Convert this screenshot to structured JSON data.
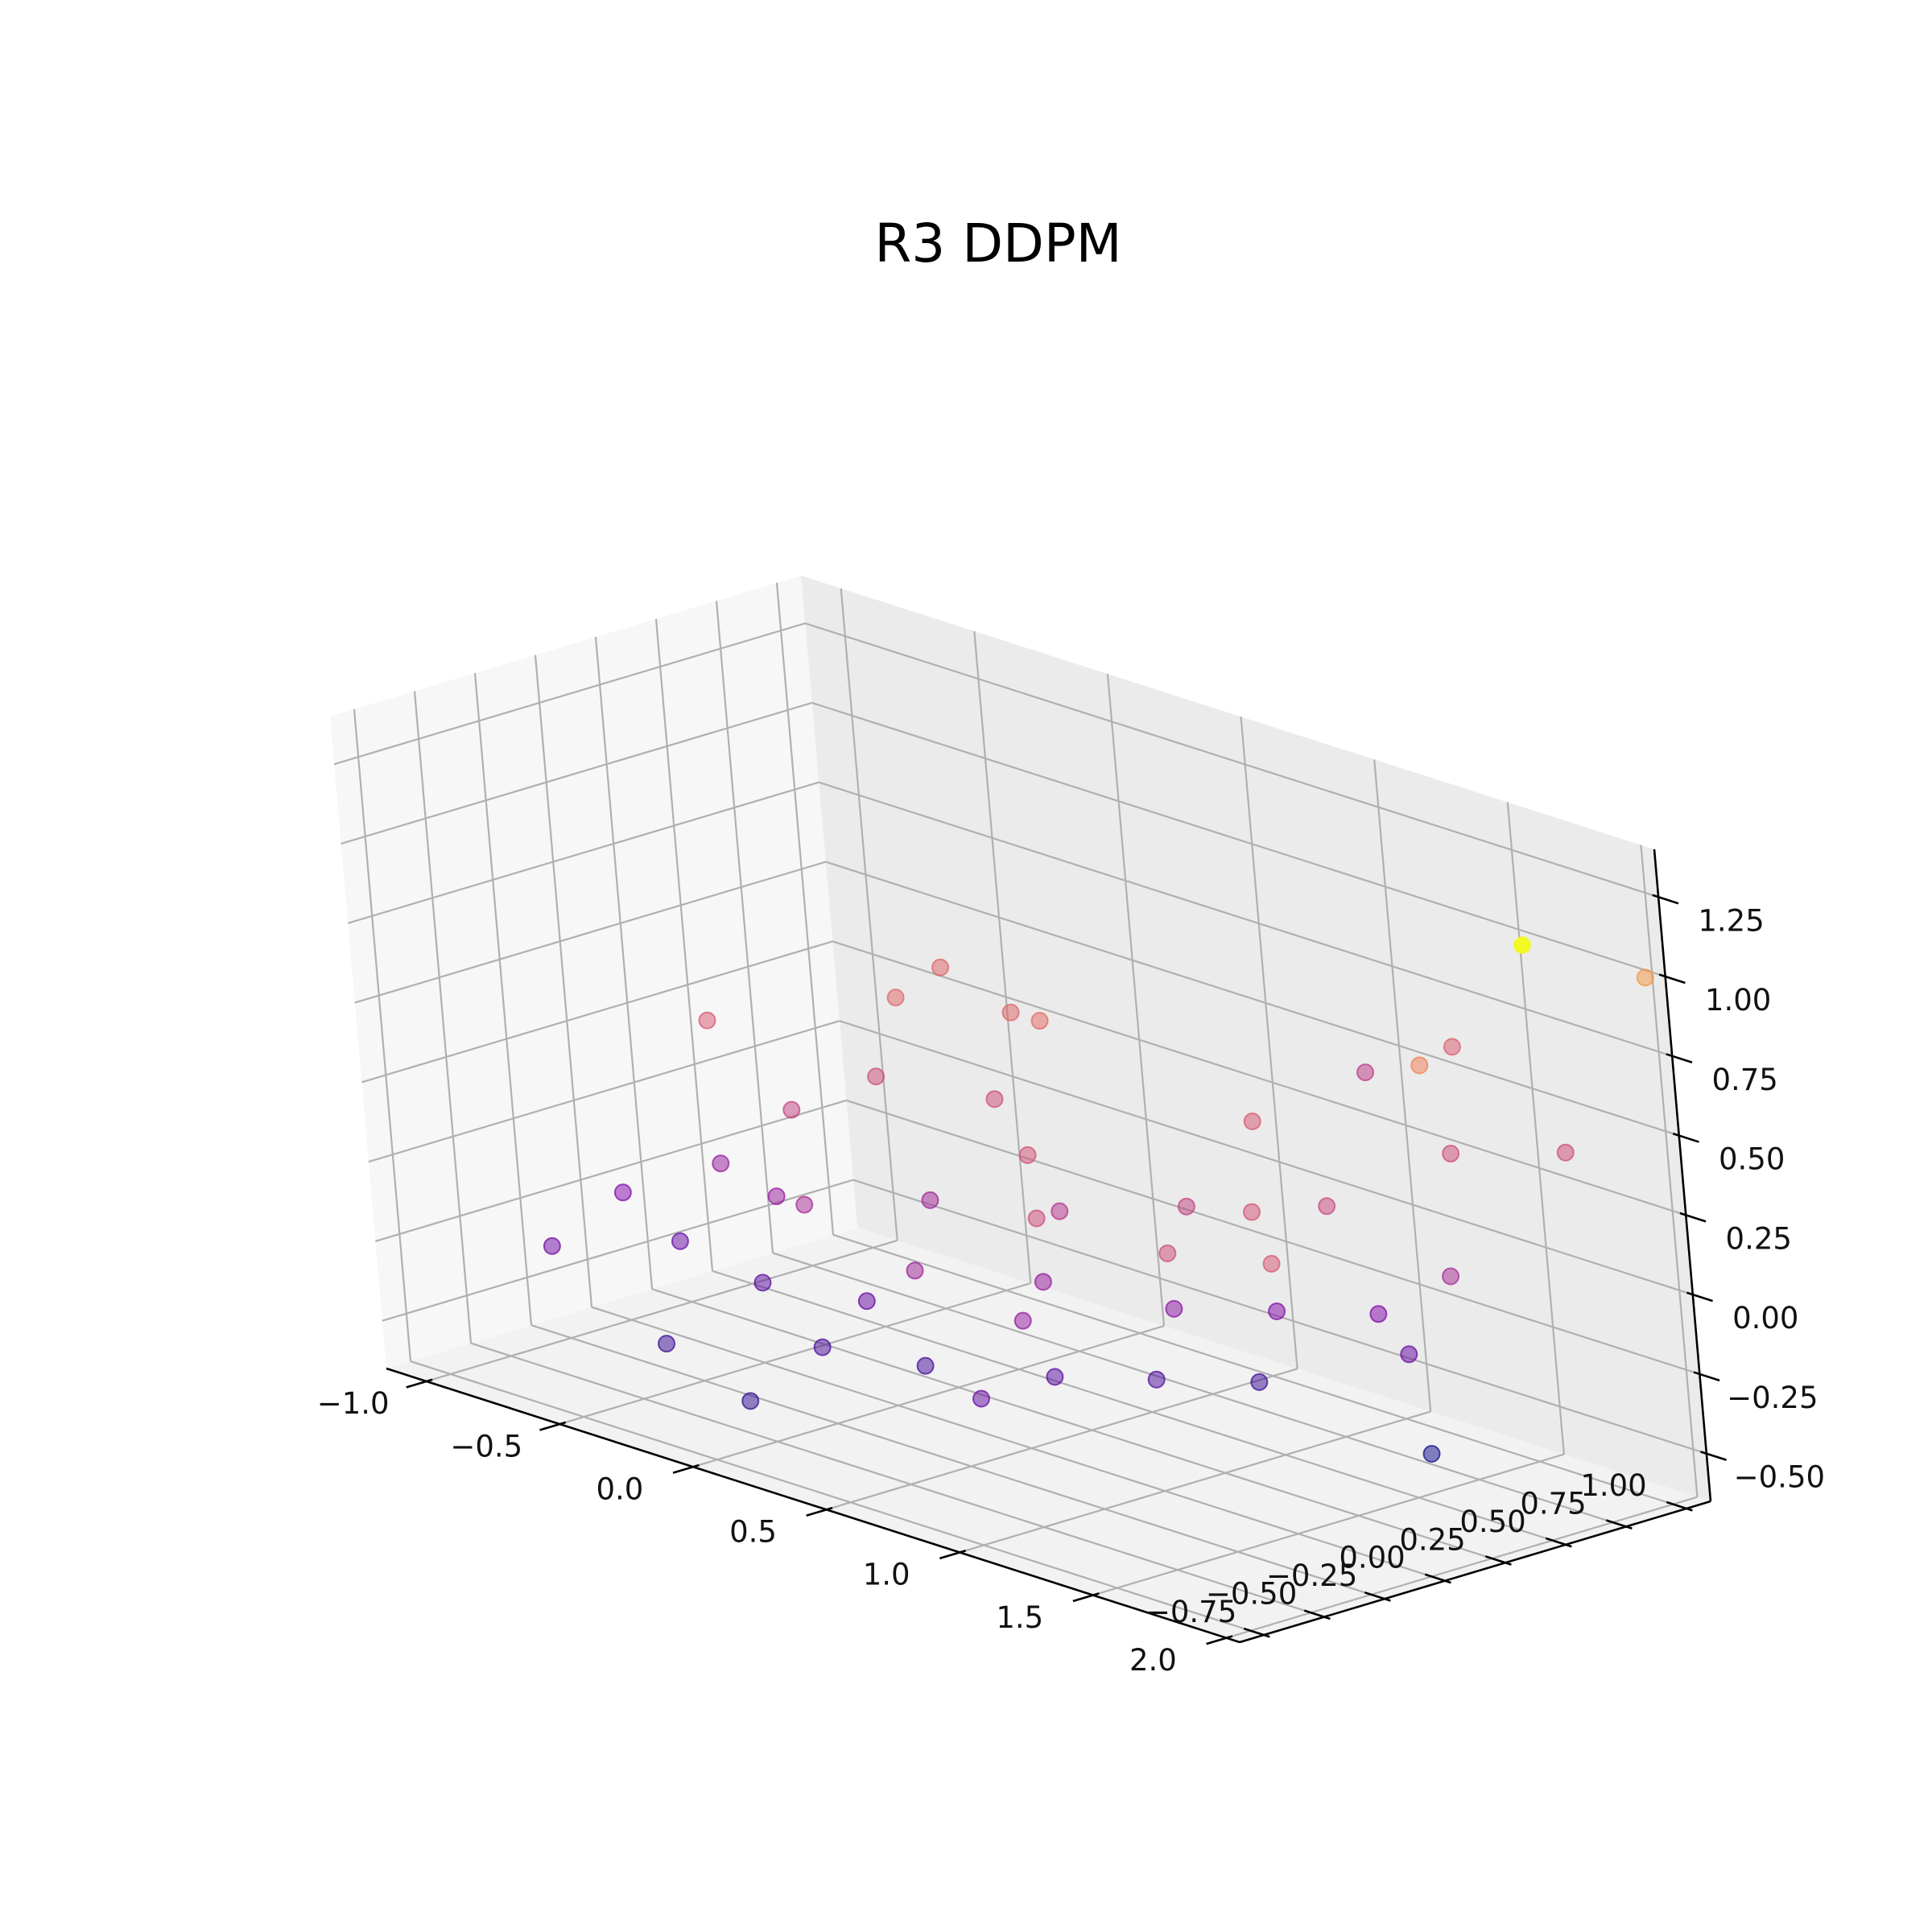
{
  "chart_data": {
    "type": "scatter",
    "projection": "3d",
    "title": "R3 DDPM",
    "xlabel": "",
    "ylabel": "",
    "zlabel": "",
    "xlim": [
      -1.15,
      2.05
    ],
    "ylim": [
      -0.85,
      1.1
    ],
    "zlim": [
      -0.65,
      1.4
    ],
    "x_ticks": [
      "−1.0",
      "−0.5",
      "0.0",
      "0.5",
      "1.0",
      "1.5",
      "2.0"
    ],
    "y_ticks": [
      "−0.75",
      "−0.50",
      "−0.25",
      "0.00",
      "0.25",
      "0.50",
      "0.75",
      "1.00"
    ],
    "z_ticks": [
      "−0.50",
      "−0.25",
      "0.00",
      "0.25",
      "0.50",
      "0.75",
      "1.00",
      "1.25"
    ],
    "grid": true,
    "colormap": "plasma",
    "color_by": "z",
    "panes": [
      "#f2f2f2",
      "#f7f7f7",
      "#ebebeb"
    ],
    "marker_alpha": 0.5,
    "points": [
      {
        "x": -0.6,
        "y": 0.95,
        "z": 0.35,
        "c": 0.55
      },
      {
        "x": 0.1,
        "y": 0.6,
        "z": 0.45,
        "c": 0.58
      },
      {
        "x": -0.4,
        "y": 0.55,
        "z": 0.4,
        "c": 0.56
      },
      {
        "x": -0.8,
        "y": 0.2,
        "z": 0.3,
        "c": 0.5
      },
      {
        "x": -0.2,
        "y": 0.8,
        "z": 0.35,
        "c": 0.55
      },
      {
        "x": 1.7,
        "y": 0.9,
        "z": 1.05,
        "c": 1.0
      },
      {
        "x": 2.02,
        "y": 1.05,
        "z": 1.0,
        "c": 0.72
      },
      {
        "x": 1.55,
        "y": 0.6,
        "z": 0.7,
        "c": 0.66
      },
      {
        "x": 1.3,
        "y": 1.0,
        "z": 0.6,
        "c": 0.52
      },
      {
        "x": 1.1,
        "y": 0.85,
        "z": 0.5,
        "c": 0.4
      },
      {
        "x": 1.45,
        "y": 0.8,
        "z": 0.35,
        "c": 0.45
      },
      {
        "x": 1.75,
        "y": 0.95,
        "z": 0.4,
        "c": 0.45
      },
      {
        "x": 0.6,
        "y": 0.9,
        "z": 0.2,
        "c": 0.5
      },
      {
        "x": 0.95,
        "y": 0.5,
        "z": 0.1,
        "c": 0.48
      },
      {
        "x": 0.85,
        "y": 0.25,
        "z": 0.0,
        "c": 0.45
      },
      {
        "x": 1.2,
        "y": 0.3,
        "z": 0.05,
        "c": 0.5
      },
      {
        "x": 0.5,
        "y": 0.1,
        "z": 0.05,
        "c": 0.45
      },
      {
        "x": 0.2,
        "y": 0.4,
        "z": 0.1,
        "c": 0.48
      },
      {
        "x": -0.6,
        "y": 0.3,
        "z": 0.05,
        "c": 0.42
      },
      {
        "x": -0.2,
        "y": -0.1,
        "z": -0.05,
        "c": 0.35
      },
      {
        "x": 0.3,
        "y": -0.2,
        "z": -0.1,
        "c": 0.32
      },
      {
        "x": 0.7,
        "y": -0.2,
        "z": -0.15,
        "c": 0.3
      },
      {
        "x": 1.0,
        "y": 0.1,
        "z": -0.1,
        "c": 0.28
      },
      {
        "x": 1.3,
        "y": 0.2,
        "z": -0.05,
        "c": 0.26
      },
      {
        "x": 1.5,
        "y": 0.4,
        "z": -0.05,
        "c": 0.25
      },
      {
        "x": 0.8,
        "y": -0.5,
        "z": -0.3,
        "c": 0.2
      },
      {
        "x": 0.3,
        "y": -0.6,
        "z": -0.25,
        "c": 0.15
      },
      {
        "x": -0.1,
        "y": -0.4,
        "z": -0.2,
        "c": 0.18
      },
      {
        "x": -0.5,
        "y": -0.3,
        "z": -0.2,
        "c": 0.2
      },
      {
        "x": -0.8,
        "y": -0.2,
        "z": -0.15,
        "c": 0.25
      },
      {
        "x": -0.3,
        "y": -0.6,
        "z": -0.4,
        "c": 0.12
      },
      {
        "x": 0.1,
        "y": -0.7,
        "z": -0.45,
        "c": 0.1
      },
      {
        "x": 0.5,
        "y": -0.4,
        "z": -0.3,
        "c": 0.14
      },
      {
        "x": 1.1,
        "y": -0.1,
        "z": -0.25,
        "c": 0.16
      },
      {
        "x": 1.4,
        "y": 0.0,
        "z": -0.2,
        "c": 0.12
      },
      {
        "x": 1.7,
        "y": 0.3,
        "z": -0.1,
        "c": 0.2
      },
      {
        "x": 1.85,
        "y": 0.2,
        "z": -0.35,
        "c": 0.05
      },
      {
        "x": -0.9,
        "y": -0.4,
        "z": -0.3,
        "c": 0.22
      },
      {
        "x": -0.7,
        "y": 0.1,
        "z": -0.1,
        "c": 0.3
      },
      {
        "x": 0.0,
        "y": 0.2,
        "z": -0.05,
        "c": 0.33
      },
      {
        "x": 0.4,
        "y": 0.3,
        "z": 0.0,
        "c": 0.38
      },
      {
        "x": 0.7,
        "y": 0.5,
        "z": 0.05,
        "c": 0.42
      },
      {
        "x": 1.05,
        "y": 0.7,
        "z": 0.1,
        "c": 0.44
      },
      {
        "x": 0.2,
        "y": -0.3,
        "z": -0.2,
        "c": 0.2
      },
      {
        "x": -0.4,
        "y": 0.0,
        "z": -0.1,
        "c": 0.3
      },
      {
        "x": 0.6,
        "y": 0.0,
        "z": -0.1,
        "c": 0.3
      },
      {
        "x": 1.6,
        "y": 0.6,
        "z": 0.05,
        "c": 0.35
      },
      {
        "x": -0.1,
        "y": 0.6,
        "z": 0.15,
        "c": 0.46
      },
      {
        "x": -0.55,
        "y": 0.6,
        "z": 0.1,
        "c": 0.45
      },
      {
        "x": 0.9,
        "y": -0.3,
        "z": -0.25,
        "c": 0.18
      }
    ]
  }
}
